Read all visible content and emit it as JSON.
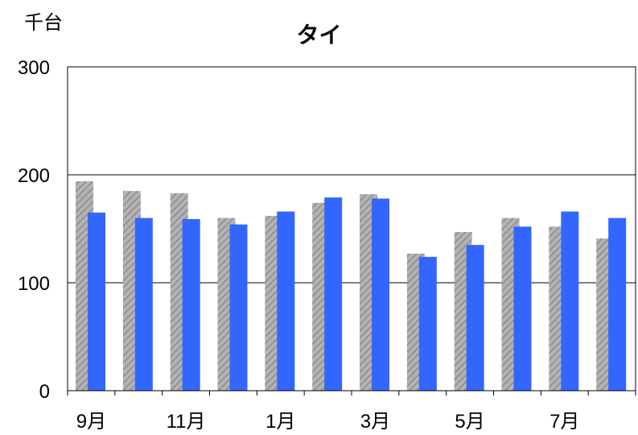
{
  "chart_data": {
    "type": "bar",
    "title": "タイ",
    "unit_label": "千台",
    "categories": [
      "9月",
      "",
      "11月",
      "",
      "1月",
      "",
      "3月",
      "",
      "5月",
      "",
      "7月",
      ""
    ],
    "series": [
      {
        "values": [
          194,
          185,
          183,
          160,
          162,
          174,
          182,
          127,
          147,
          160,
          152,
          141
        ],
        "color": "#a6a6a6",
        "pattern": "diagonal-hatch"
      },
      {
        "values": [
          165,
          160,
          159,
          154,
          166,
          179,
          178,
          124,
          135,
          152,
          166,
          160
        ],
        "color": "#3366ff"
      }
    ],
    "ylim": [
      0,
      300
    ],
    "yticks": [
      0,
      100,
      200,
      300
    ],
    "grid": true
  }
}
